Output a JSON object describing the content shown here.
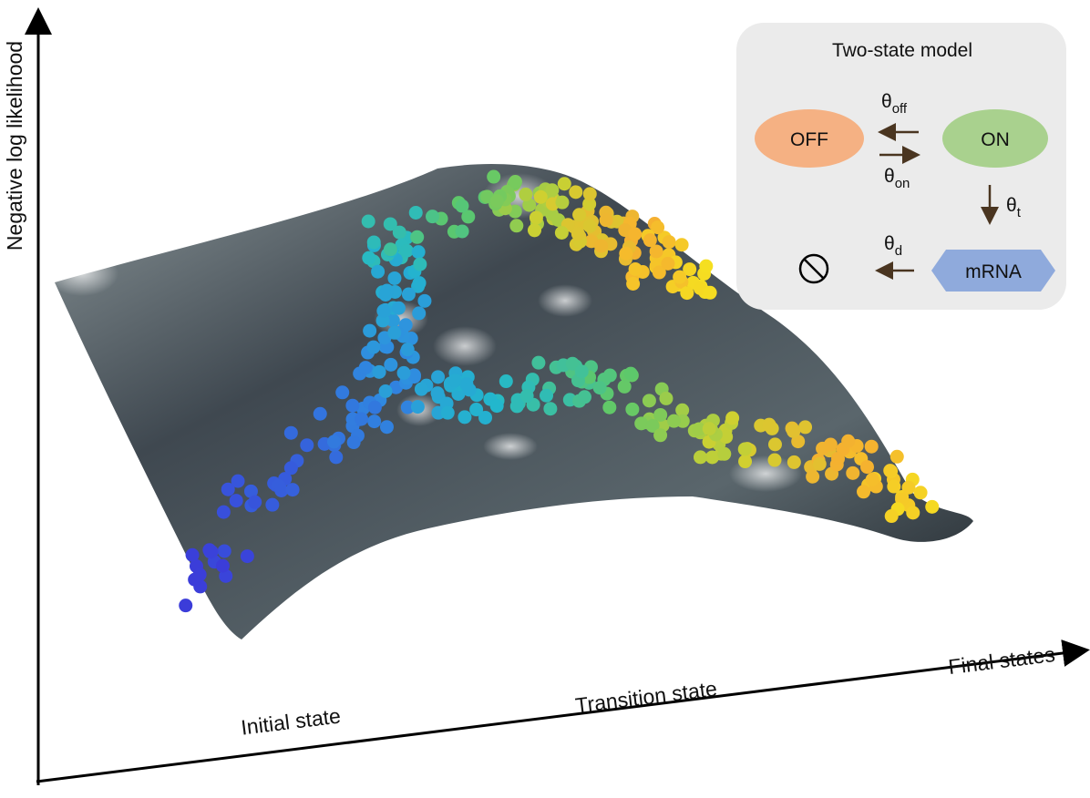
{
  "axes": {
    "y_label": "Negative log likelihood",
    "x_labels": [
      "Initial state",
      "Transition state",
      "Final states"
    ]
  },
  "inset": {
    "title": "Two-state model",
    "nodes": {
      "off": "OFF",
      "on": "ON",
      "mrna": "mRNA"
    },
    "rates": {
      "theta_off": {
        "symbol": "θ",
        "subscript": "off"
      },
      "theta_on": {
        "symbol": "θ",
        "subscript": "on"
      },
      "theta_t": {
        "symbol": "θ",
        "subscript": "t"
      },
      "theta_d": {
        "symbol": "θ",
        "subscript": "d"
      }
    }
  }
}
